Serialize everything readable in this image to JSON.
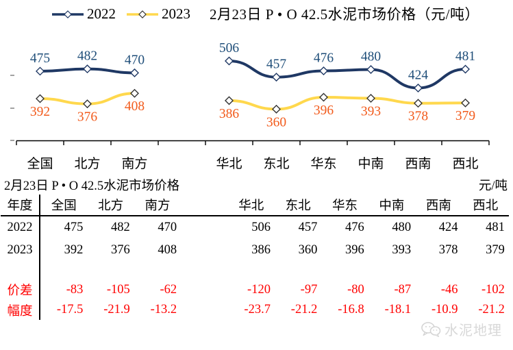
{
  "page": {
    "chart_title": "2月23日 P • O 42.5水泥市场价格（元/吨）",
    "watermark": "水泥地理"
  },
  "chart_data": {
    "type": "line",
    "title": "2月23日 P • O 42.5水泥市场价格（元/吨）",
    "unit": "元/吨",
    "categories": [
      "全国",
      "北方",
      "南方",
      "华北",
      "东北",
      "华东",
      "中南",
      "西南",
      "西北"
    ],
    "group_gap_after_index": 2,
    "marker": "white-diamond",
    "grid": false,
    "legend_position": "top-left",
    "ylim": [
      264,
      564
    ],
    "series": [
      {
        "name": "2022",
        "values": [
          475,
          482,
          470,
          506,
          457,
          476,
          480,
          424,
          481
        ],
        "line_color": "#1F3864",
        "label_color": "#1F4E79",
        "marker_stroke": "#1F3864",
        "label_position": "above"
      },
      {
        "name": "2023",
        "values": [
          392,
          376,
          408,
          386,
          360,
          396,
          393,
          378,
          379
        ],
        "line_color": "#FFD84D",
        "label_color": "#F25B1C",
        "marker_stroke": "#333333",
        "label_position": "below"
      }
    ]
  },
  "table": {
    "title": "2月23日 P • O 42.5水泥市场价格",
    "unit": "元/吨",
    "row_header": "年度",
    "columns": [
      "全国",
      "北方",
      "南方",
      "华北",
      "东北",
      "华东",
      "中南",
      "西南",
      "西北"
    ],
    "rows": [
      {
        "label": "2022",
        "values": [
          "475",
          "482",
          "470",
          "506",
          "457",
          "476",
          "480",
          "424",
          "481"
        ]
      },
      {
        "label": "2023",
        "values": [
          "392",
          "376",
          "408",
          "386",
          "360",
          "396",
          "393",
          "378",
          "379"
        ]
      },
      {
        "label": "价差",
        "values": [
          "-83",
          "-105",
          "-62",
          "-120",
          "-97",
          "-80",
          "-87",
          "-46",
          "-102"
        ],
        "highlight": "red"
      },
      {
        "label": "幅度",
        "values": [
          "-17.5",
          "-21.9",
          "-13.2",
          "-23.7",
          "-21.2",
          "-16.8",
          "-18.1",
          "-10.9",
          "-21.2"
        ],
        "highlight": "red"
      }
    ]
  },
  "colors": {
    "axis": "#000000",
    "red_value": "#FF0000",
    "watermark": "#D8D8D8"
  }
}
